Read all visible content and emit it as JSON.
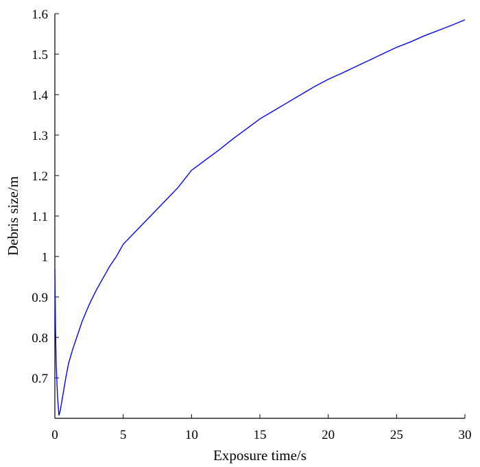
{
  "chart_data": {
    "type": "line",
    "xlabel": "Exposure time/s",
    "ylabel": "Debris size/m",
    "xlim": [
      0,
      30
    ],
    "ylim": [
      0.6,
      1.6
    ],
    "x_ticks": [
      0,
      5,
      10,
      15,
      20,
      25,
      30
    ],
    "x_tick_labels": [
      "0",
      "5",
      "10",
      "15",
      "20",
      "25",
      "30"
    ],
    "y_ticks": [
      0.7,
      0.8,
      0.9,
      1.0,
      1.1,
      1.2,
      1.3,
      1.4,
      1.5,
      1.6
    ],
    "y_tick_labels": [
      "0.7",
      "0.8",
      "0.9",
      "1",
      "1.1",
      "1.2",
      "1.3",
      "1.4",
      "1.5",
      "1.6"
    ],
    "grid": false,
    "line_color": "#0000ff",
    "series": [
      {
        "x": [
          0,
          0.02,
          0.05,
          0.1,
          0.2,
          0.3,
          0.4,
          0.6,
          0.8,
          1.0,
          1.3,
          1.6,
          2.0,
          2.5,
          3.0,
          3.5,
          4.0,
          4.5,
          5.0,
          6.0,
          7.0,
          8.0,
          9.0,
          10.0,
          11.0,
          12.0,
          13.0,
          14.0,
          15.0,
          16.0,
          17.0,
          18.0,
          19.0,
          20.0,
          21.0,
          22.0,
          23.0,
          24.0,
          25.0,
          26.0,
          27.0,
          28.0,
          29.0,
          30.0
        ],
        "y": [
          0.97,
          0.9,
          0.82,
          0.73,
          0.65,
          0.607,
          0.62,
          0.66,
          0.7,
          0.735,
          0.77,
          0.8,
          0.84,
          0.88,
          0.915,
          0.945,
          0.975,
          1.0,
          1.03,
          1.065,
          1.1,
          1.135,
          1.17,
          1.213,
          1.238,
          1.263,
          1.29,
          1.315,
          1.34,
          1.36,
          1.38,
          1.4,
          1.42,
          1.438,
          1.453,
          1.469,
          1.485,
          1.501,
          1.517,
          1.53,
          1.545,
          1.558,
          1.571,
          1.585
        ]
      }
    ]
  }
}
